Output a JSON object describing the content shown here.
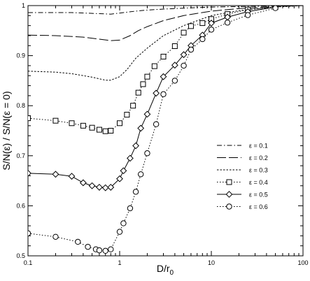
{
  "chart_data": {
    "type": "line",
    "xlabel": "D/r",
    "xlabel_sub": "0",
    "ylabel": "S/N(ε) / S/N(ε = 0)",
    "xscale": "log",
    "xlim": [
      0.1,
      100
    ],
    "ylim": [
      0.5,
      1.0
    ],
    "x_ticks": [
      {
        "v": 0.1,
        "label": "0.1"
      },
      {
        "v": 1,
        "label": "1"
      },
      {
        "v": 10,
        "label": "10"
      },
      {
        "v": 100,
        "label": "100"
      }
    ],
    "y_ticks": [
      {
        "v": 0.5,
        "label": "0.5"
      },
      {
        "v": 0.6,
        "label": "0.6"
      },
      {
        "v": 0.7,
        "label": "0.7"
      },
      {
        "v": 0.8,
        "label": "0.8"
      },
      {
        "v": 0.9,
        "label": "0.9"
      },
      {
        "v": 1.0,
        "label": "1"
      }
    ],
    "legend_position": "right-middle",
    "series": [
      {
        "name": "ε = 0.1",
        "dash": "dashdot",
        "marker": "none",
        "x": [
          0.1,
          0.3,
          0.6,
          0.8,
          1.0,
          1.5,
          2,
          3,
          5,
          10,
          20,
          50,
          100
        ],
        "y": [
          0.986,
          0.986,
          0.984,
          0.983,
          0.985,
          0.989,
          0.991,
          0.993,
          0.995,
          0.997,
          0.998,
          0.999,
          1.0
        ]
      },
      {
        "name": "ε = 0.2",
        "dash": "longdash",
        "marker": "none",
        "x": [
          0.1,
          0.2,
          0.4,
          0.6,
          0.8,
          1.0,
          1.3,
          1.6,
          2,
          3,
          5,
          10,
          20,
          50,
          100
        ],
        "y": [
          0.941,
          0.94,
          0.937,
          0.933,
          0.93,
          0.931,
          0.94,
          0.95,
          0.958,
          0.97,
          0.98,
          0.989,
          0.994,
          0.998,
          1.0
        ]
      },
      {
        "name": "ε = 0.3",
        "dash": "shortdash",
        "marker": "none",
        "x": [
          0.1,
          0.2,
          0.3,
          0.5,
          0.7,
          0.8,
          1.0,
          1.2,
          1.5,
          2,
          3,
          5,
          10,
          20,
          50,
          100
        ],
        "y": [
          0.869,
          0.867,
          0.864,
          0.857,
          0.851,
          0.851,
          0.858,
          0.872,
          0.895,
          0.915,
          0.94,
          0.96,
          0.98,
          0.99,
          0.997,
          1.0
        ]
      },
      {
        "name": "ε = 0.4",
        "dash": "dotted",
        "marker": "square",
        "x": [
          0.1,
          0.2,
          0.3,
          0.4,
          0.5,
          0.6,
          0.7,
          0.8,
          1.0,
          1.2,
          1.4,
          1.6,
          1.8,
          2.0,
          2.4,
          3.0,
          4.0,
          5.0,
          6.0,
          8.0,
          10,
          15,
          25,
          50
        ],
        "y": [
          0.775,
          0.77,
          0.765,
          0.76,
          0.756,
          0.752,
          0.749,
          0.75,
          0.765,
          0.782,
          0.8,
          0.826,
          0.843,
          0.858,
          0.879,
          0.898,
          0.919,
          0.946,
          0.959,
          0.965,
          0.973,
          0.983,
          0.992,
          0.997
        ]
      },
      {
        "name": "ε = 0.5",
        "dash": "solid",
        "marker": "diamond",
        "x": [
          0.1,
          0.2,
          0.3,
          0.4,
          0.5,
          0.6,
          0.7,
          0.8,
          1.0,
          1.1,
          1.3,
          1.5,
          1.7,
          2.0,
          2.5,
          3.0,
          4.0,
          5.0,
          6.0,
          8.0,
          10,
          15,
          25,
          50
        ],
        "y": [
          0.665,
          0.663,
          0.659,
          0.646,
          0.64,
          0.637,
          0.636,
          0.637,
          0.654,
          0.67,
          0.695,
          0.72,
          0.755,
          0.783,
          0.825,
          0.858,
          0.881,
          0.902,
          0.92,
          0.941,
          0.965,
          0.977,
          0.988,
          0.997
        ]
      },
      {
        "name": "ε = 0.6",
        "dash": "dotted",
        "marker": "circle",
        "x": [
          0.1,
          0.2,
          0.35,
          0.45,
          0.55,
          0.6,
          0.7,
          0.8,
          1.0,
          1.1,
          1.3,
          1.5,
          1.7,
          2.0,
          2.5,
          3.0,
          4.0,
          5.0,
          6.0,
          8.0,
          10,
          15,
          25,
          50
        ],
        "y": [
          0.545,
          0.538,
          0.528,
          0.518,
          0.513,
          0.511,
          0.51,
          0.513,
          0.548,
          0.565,
          0.595,
          0.628,
          0.663,
          0.705,
          0.763,
          0.823,
          0.85,
          0.88,
          0.912,
          0.933,
          0.952,
          0.966,
          0.981,
          0.995
        ]
      }
    ]
  }
}
